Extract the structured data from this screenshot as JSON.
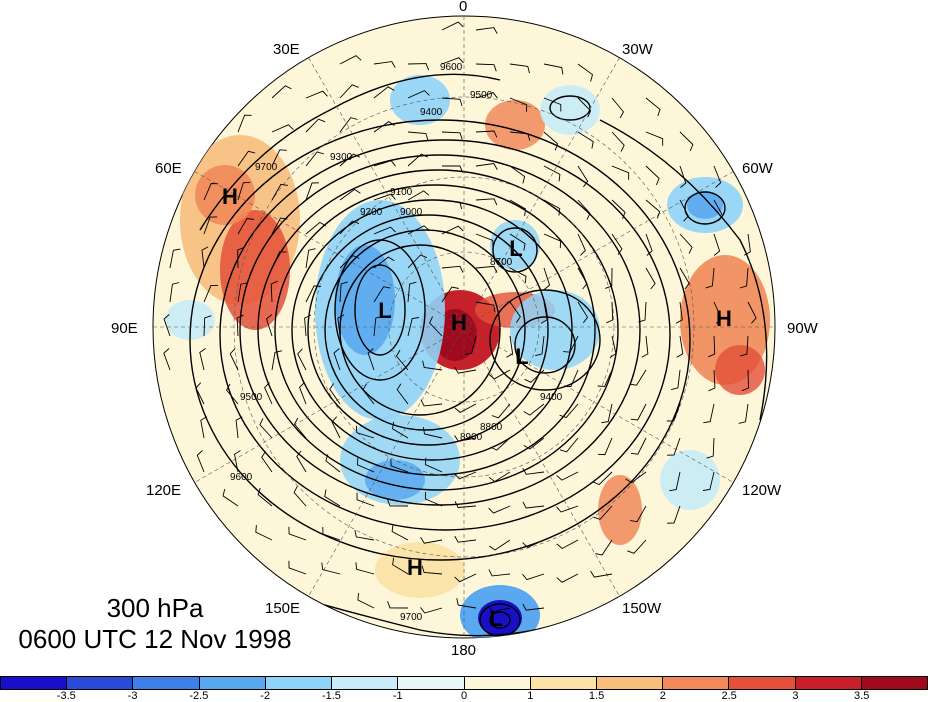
{
  "title": {
    "level": "300 hPa",
    "time": "0600 UTC 12 Nov 1998"
  },
  "longitude_labels": [
    {
      "id": "0",
      "text": "0"
    },
    {
      "id": "30W",
      "text": "30W"
    },
    {
      "id": "60W",
      "text": "60W"
    },
    {
      "id": "90W",
      "text": "90W"
    },
    {
      "id": "120W",
      "text": "120W"
    },
    {
      "id": "150W",
      "text": "150W"
    },
    {
      "id": "180",
      "text": "180"
    },
    {
      "id": "150E",
      "text": "150E"
    },
    {
      "id": "120E",
      "text": "120E"
    },
    {
      "id": "90E",
      "text": "90E"
    },
    {
      "id": "60E",
      "text": "60E"
    },
    {
      "id": "30E",
      "text": "30E"
    }
  ],
  "pressure_centers": [
    {
      "type": "H",
      "label": "H"
    },
    {
      "type": "H",
      "label": "H"
    },
    {
      "type": "H",
      "label": "H"
    },
    {
      "type": "H",
      "label": "H"
    },
    {
      "type": "L",
      "label": "L"
    },
    {
      "type": "L",
      "label": "L"
    },
    {
      "type": "L",
      "label": "L"
    },
    {
      "type": "L",
      "label": "L"
    }
  ],
  "contour_labels": [
    "9600",
    "9500",
    "9400",
    "9300",
    "9200",
    "9100",
    "9000",
    "8900",
    "8800",
    "8700",
    "9700",
    "9600",
    "9500",
    "9400",
    "9700"
  ],
  "colorbar": {
    "colors": [
      "#1a0fc8",
      "#2a4bd8",
      "#3f7fe8",
      "#5aa8f0",
      "#8fd3f8",
      "#c8ecf8",
      "#e8f6f8",
      "#fdf6d8",
      "#fbe3a8",
      "#f7be7e",
      "#f08a5a",
      "#e4503a",
      "#c8202a",
      "#a00a1e"
    ],
    "ticks": [
      "-3.5",
      "-3",
      "-2.5",
      "-2",
      "-1.5",
      "-1",
      "0",
      "1",
      "1.5",
      "2",
      "2.5",
      "3",
      "3.5"
    ]
  }
}
